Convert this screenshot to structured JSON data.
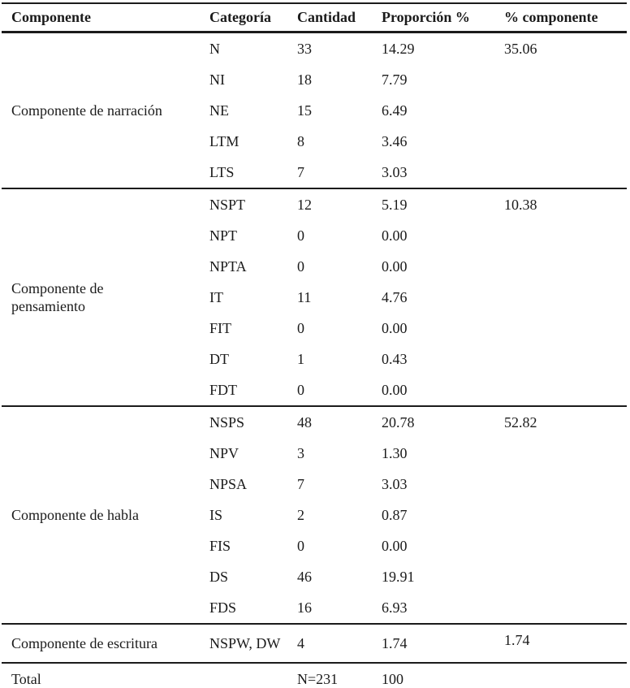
{
  "colors": {
    "text": "#1b1b1b",
    "background": "#ffffff",
    "rule": "#1b1b1b"
  },
  "table": {
    "headers": [
      "Componente",
      "Categoría",
      "Cantidad",
      "Proporción %",
      "% componente"
    ],
    "sections": [
      {
        "component": [
          "Componente de narración"
        ],
        "component_pct": "35.06",
        "rows": [
          {
            "category": "N",
            "count": "33",
            "proportion": "14.29"
          },
          {
            "category": "NI",
            "count": "18",
            "proportion": "7.79"
          },
          {
            "category": "NE",
            "count": "15",
            "proportion": "6.49"
          },
          {
            "category": "LTM",
            "count": "8",
            "proportion": "3.46"
          },
          {
            "category": "LTS",
            "count": "7",
            "proportion": "3.03"
          }
        ]
      },
      {
        "component": [
          "Componente de",
          "pensamiento"
        ],
        "component_pct": "10.38",
        "rows": [
          {
            "category": "NSPT",
            "count": "12",
            "proportion": "5.19"
          },
          {
            "category": "NPT",
            "count": "0",
            "proportion": "0.00"
          },
          {
            "category": "NPTA",
            "count": "0",
            "proportion": "0.00"
          },
          {
            "category": "IT",
            "count": "11",
            "proportion": "4.76"
          },
          {
            "category": "FIT",
            "count": "0",
            "proportion": "0.00"
          },
          {
            "category": "DT",
            "count": "1",
            "proportion": "0.43"
          },
          {
            "category": "FDT",
            "count": "0",
            "proportion": "0.00"
          }
        ]
      },
      {
        "component": [
          "Componente de habla"
        ],
        "component_pct": "52.82",
        "rows": [
          {
            "category": "NSPS",
            "count": "48",
            "proportion": "20.78"
          },
          {
            "category": "NPV",
            "count": "3",
            "proportion": "1.30"
          },
          {
            "category": "NPSA",
            "count": "7",
            "proportion": "3.03"
          },
          {
            "category": "IS",
            "count": "2",
            "proportion": "0.87"
          },
          {
            "category": "FIS",
            "count": "0",
            "proportion": "0.00"
          },
          {
            "category": "DS",
            "count": "46",
            "proportion": "19.91"
          },
          {
            "category": "FDS",
            "count": "16",
            "proportion": "6.93"
          }
        ]
      },
      {
        "component": [
          "Componente de escritura"
        ],
        "component_pct": "1.74",
        "rows": [
          {
            "category": "NSPW, DW",
            "count": "4",
            "proportion": "1.74"
          }
        ]
      }
    ],
    "total": {
      "label": "Total",
      "count": "N=231",
      "proportion": "100"
    }
  }
}
